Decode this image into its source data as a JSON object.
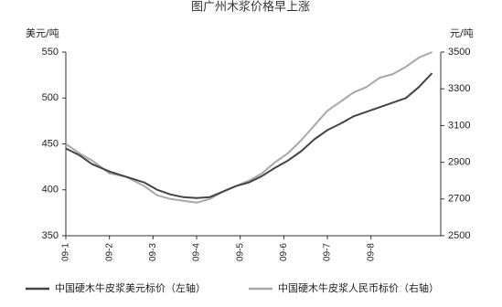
{
  "chart_data": {
    "type": "line",
    "title": "图广州木浆价格早上涨",
    "left_unit": "美元/吨",
    "right_unit": "元/吨",
    "left_ylim": [
      350,
      550
    ],
    "right_ylim": [
      2500,
      3500
    ],
    "left_ticks": [
      "550",
      "500",
      "450",
      "400",
      "350"
    ],
    "right_ticks": [
      "3500",
      "3300",
      "3100",
      "2900",
      "2700",
      "2500"
    ],
    "x_ticks": [
      "09-1",
      "09-2",
      "09-3",
      "09-4",
      "09-5",
      "09-6",
      "09-7",
      "09-8"
    ],
    "x_range": [
      0,
      8.6
    ],
    "series": [
      {
        "name": "中国硬木牛皮浆美元标价（左轴）",
        "axis": "left",
        "color": "#444444",
        "x": [
          0,
          0.3,
          0.6,
          1.0,
          1.4,
          1.8,
          2.1,
          2.4,
          2.7,
          3.0,
          3.3,
          3.6,
          3.9,
          4.2,
          4.5,
          4.8,
          5.1,
          5.4,
          5.7,
          6.0,
          6.3,
          6.6,
          6.9,
          7.2,
          7.5,
          7.8,
          8.1,
          8.4
        ],
        "values": [
          445,
          438,
          428,
          420,
          414,
          408,
          400,
          395,
          392,
          391,
          392,
          398,
          404,
          408,
          415,
          424,
          432,
          442,
          455,
          465,
          472,
          480,
          485,
          490,
          495,
          500,
          512,
          527
        ]
      },
      {
        "name": "中国硬木牛皮浆人民币标价（右轴）",
        "axis": "right",
        "color": "#a8a8a8",
        "x": [
          0,
          0.3,
          0.6,
          1.0,
          1.4,
          1.8,
          2.1,
          2.4,
          2.7,
          3.0,
          3.3,
          3.6,
          3.9,
          4.2,
          4.5,
          4.8,
          5.1,
          5.4,
          5.7,
          6.0,
          6.3,
          6.6,
          6.9,
          7.2,
          7.5,
          7.8,
          8.1,
          8.4
        ],
        "values": [
          3000,
          2950,
          2910,
          2840,
          2820,
          2770,
          2720,
          2700,
          2690,
          2680,
          2700,
          2740,
          2770,
          2800,
          2840,
          2900,
          2950,
          3020,
          3100,
          3180,
          3230,
          3280,
          3310,
          3360,
          3380,
          3420,
          3470,
          3500
        ]
      }
    ],
    "legend_position": "bottom",
    "grid": false
  }
}
